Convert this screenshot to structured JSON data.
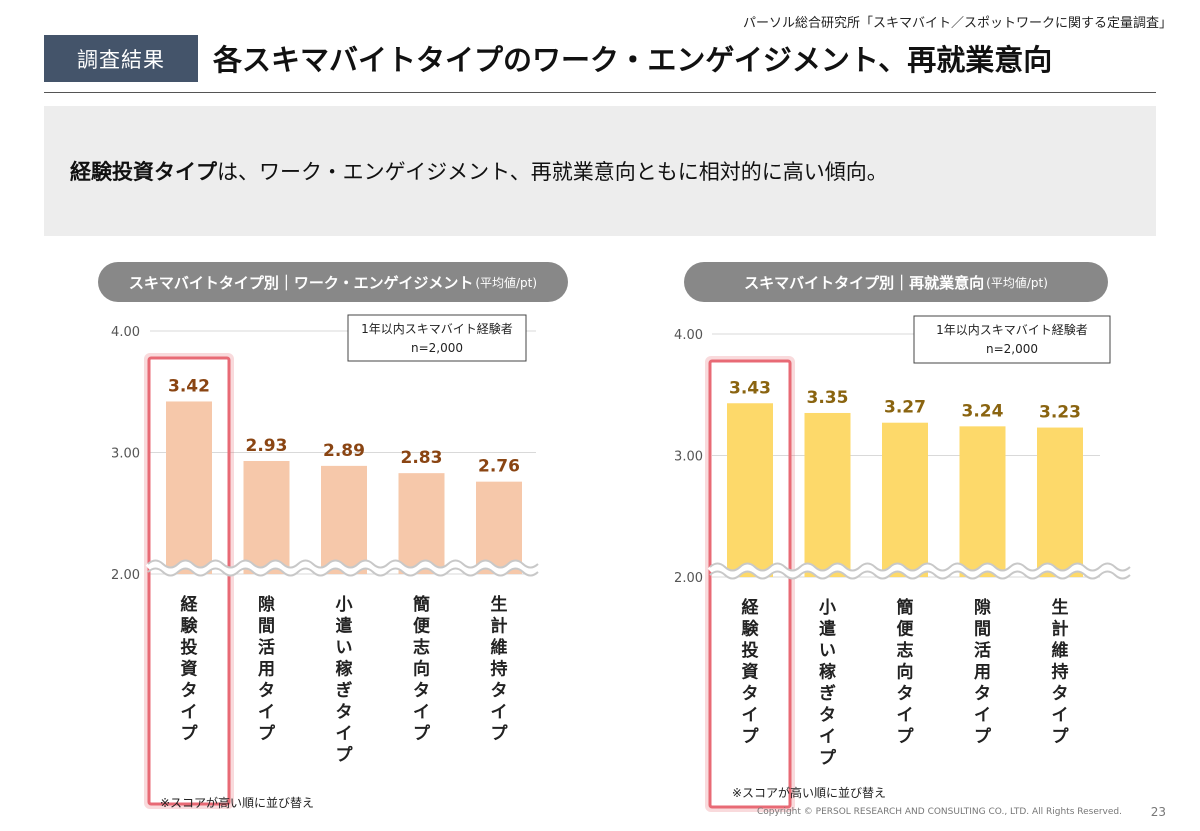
{
  "source": "パーソル総合研究所「スキマバイト／スポットワークに関する定量調査」",
  "header": {
    "tag": "調査結果",
    "title": "各スキマバイトタイプのワーク・エンゲイジメント、再就業意向"
  },
  "summary": {
    "bold": "経験投資タイプ",
    "rest": "は、ワーク・エンゲイジメント、再就業意向ともに相対的に高い傾向。"
  },
  "colors": {
    "tag_bg": "#44546a",
    "pill_bg": "#888888",
    "chart1_bar": "#f6c8aa",
    "chart2_bar": "#fdd96a",
    "value1": "#8a4513",
    "value2": "#8a6410",
    "highlight": "#e86a75"
  },
  "chart_data": [
    {
      "type": "bar",
      "pill_title": "スキマバイトタイプ別｜ワーク・エンゲイジメント",
      "pill_unit": "(平均値/pt)",
      "sample_note": [
        "1年以内スキマバイト経験者",
        "n=2,000"
      ],
      "yticks": [
        "4.00",
        "3.00",
        "2.00"
      ],
      "ylim": [
        2,
        4
      ],
      "axis_break": true,
      "categories": [
        "経験投資タイプ",
        "隙間活用タイプ",
        "小遣い稼ぎタイプ",
        "簡便志向タイプ",
        "生計維持タイプ"
      ],
      "values": [
        3.42,
        2.93,
        2.89,
        2.83,
        2.76
      ],
      "value_labels": [
        "3.42",
        "2.93",
        "2.89",
        "2.83",
        "2.76"
      ],
      "highlighted_category": "経験投資タイプ",
      "footnote": "※スコアが高い順に並び替え"
    },
    {
      "type": "bar",
      "pill_title": "スキマバイトタイプ別｜再就業意向",
      "pill_unit": "(平均値/pt)",
      "sample_note": [
        "1年以内スキマバイト経験者",
        "n=2,000"
      ],
      "yticks": [
        "4.00",
        "3.00",
        "2.00"
      ],
      "ylim": [
        2,
        4
      ],
      "axis_break": true,
      "categories": [
        "経験投資タイプ",
        "小遣い稼ぎタイプ",
        "簡便志向タイプ",
        "隙間活用タイプ",
        "生計維持タイプ"
      ],
      "values": [
        3.43,
        3.35,
        3.27,
        3.24,
        3.23
      ],
      "value_labels": [
        "3.43",
        "3.35",
        "3.27",
        "3.24",
        "3.23"
      ],
      "highlighted_category": "経験投資タイプ",
      "footnote": "※スコアが高い順に並び替え"
    }
  ],
  "footer": {
    "copyright": "Copyright © PERSOL RESEARCH AND CONSULTING CO., LTD. All Rights Reserved.",
    "page": "23"
  }
}
